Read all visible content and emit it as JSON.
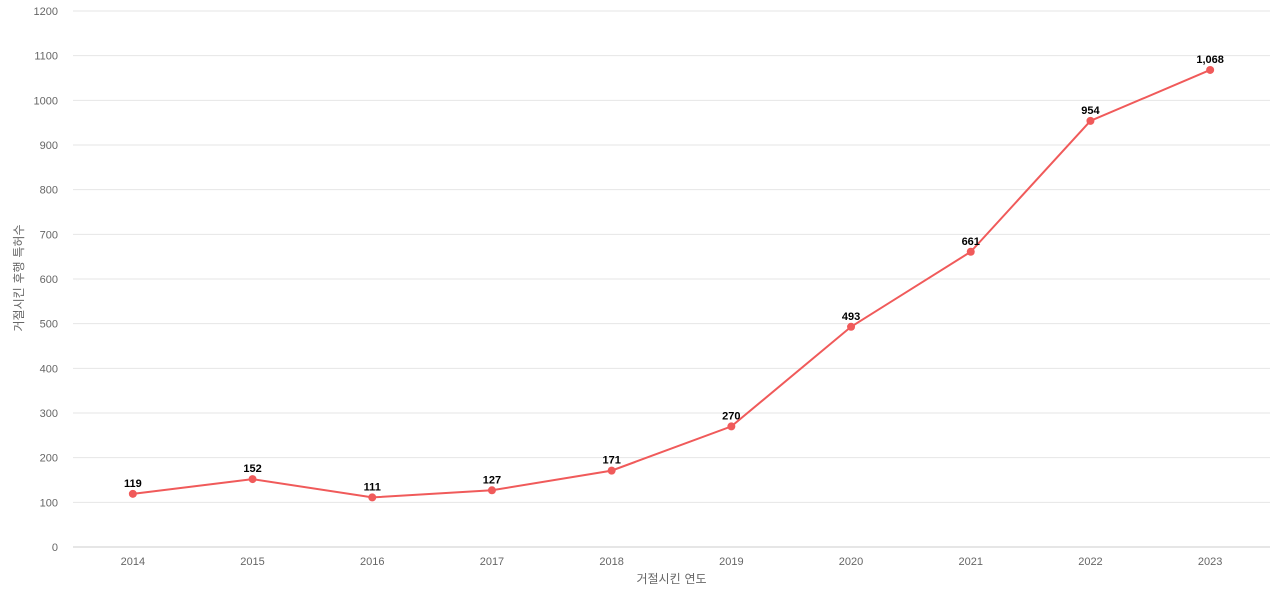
{
  "chart_data": {
    "type": "line",
    "title": "",
    "xlabel": "거절시킨 연도",
    "ylabel": "거절시킨 후행 특허수",
    "categories": [
      "2014",
      "2015",
      "2016",
      "2017",
      "2018",
      "2019",
      "2020",
      "2021",
      "2022",
      "2023"
    ],
    "series": [
      {
        "values": [
          119,
          152,
          111,
          127,
          171,
          270,
          493,
          661,
          954,
          1068
        ],
        "labels": [
          "119",
          "152",
          "111",
          "127",
          "171",
          "270",
          "493",
          "661",
          "954",
          "1,068"
        ]
      }
    ],
    "ylim": [
      0,
      1200
    ],
    "yticks": [
      "0",
      "100",
      "200",
      "300",
      "400",
      "500",
      "600",
      "700",
      "800",
      "900",
      "1000",
      "1100",
      "1200"
    ],
    "grid": true,
    "legend": "none",
    "colors": {
      "line": "#f05a5a"
    }
  }
}
